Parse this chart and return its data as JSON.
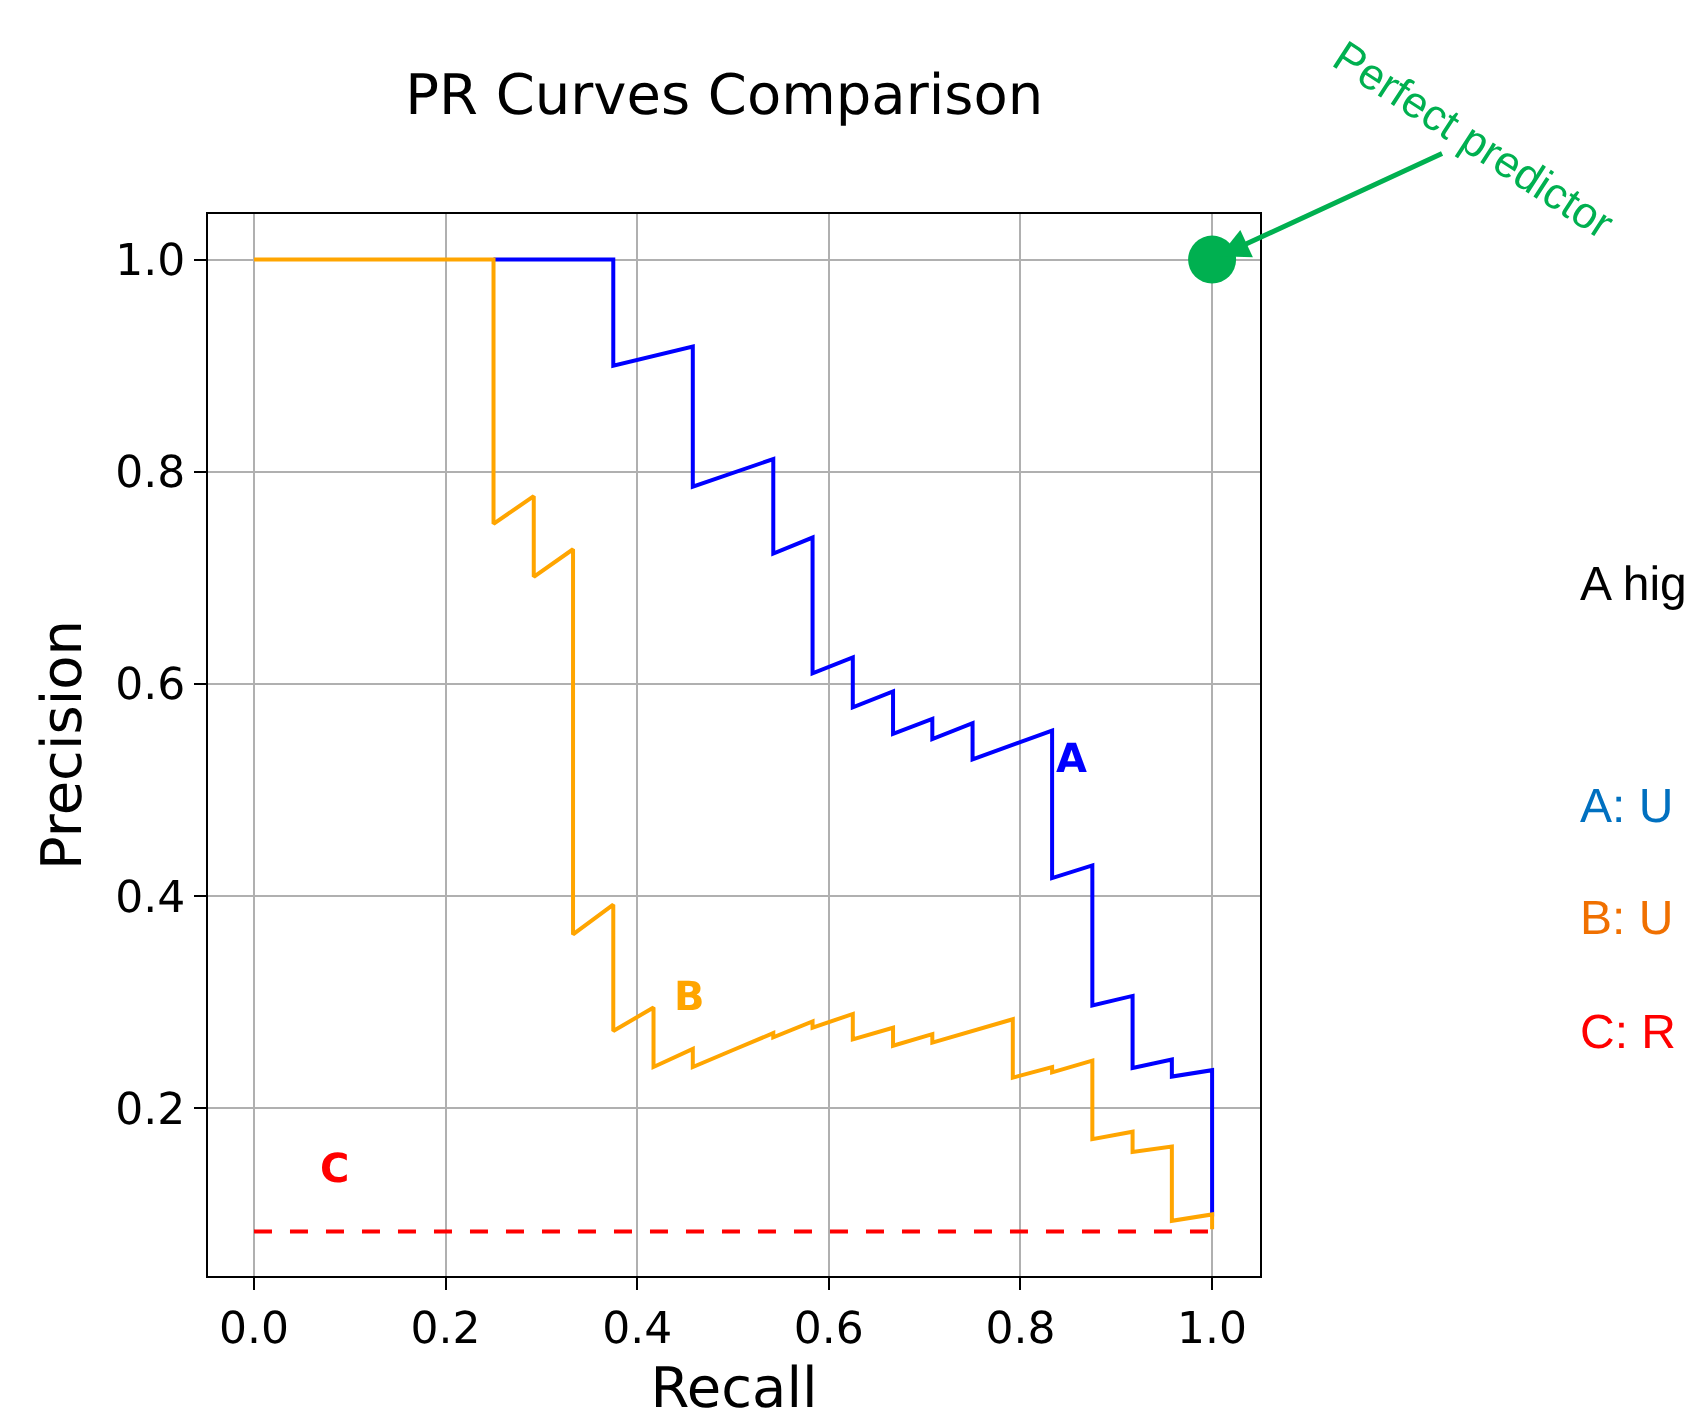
{
  "chart_data": {
    "type": "line",
    "title": "PR Curves Comparison",
    "xlabel": "Recall",
    "ylabel": "Precision",
    "xlim": [
      -0.048,
      1.05
    ],
    "ylim": [
      0.042,
      1.043
    ],
    "xticks": [
      {
        "value": 0,
        "label": "0.0"
      },
      0.2,
      0.4,
      0.6,
      0.8,
      {
        "value": 1,
        "label": "1.0"
      }
    ],
    "yticks": [
      0.2,
      0.4,
      0.6,
      0.8,
      {
        "value": 1,
        "label": "1.0"
      }
    ],
    "grid": true,
    "legend": false,
    "marker": "none",
    "line_style": "solid",
    "series": [
      {
        "name": "A",
        "color": "#0000ff",
        "x": [
          0.25,
          0.375,
          0.375,
          0.458,
          0.458,
          0.542,
          0.542,
          0.583,
          0.583,
          0.625,
          0.625,
          0.667,
          0.667,
          0.708,
          0.708,
          0.75,
          0.75,
          0.833,
          0.833,
          0.875,
          0.875,
          0.917,
          0.917,
          0.958,
          0.958,
          1.0,
          1.0
        ],
        "values": [
          1,
          1,
          0.9,
          0.918,
          0.786,
          0.812,
          0.723,
          0.738,
          0.61,
          0.625,
          0.578,
          0.593,
          0.553,
          0.567,
          0.548,
          0.563,
          0.529,
          0.556,
          0.417,
          0.429,
          0.297,
          0.306,
          0.238,
          0.246,
          0.23,
          0.236,
          0.098
        ]
      },
      {
        "name": "B",
        "color": "#ffa500",
        "x": [
          0,
          0.25,
          0.25,
          0.292,
          0.292,
          0.333,
          0.333,
          0.375,
          0.375,
          0.417,
          0.417,
          0.458,
          0.458,
          0.5,
          0.542,
          0.542,
          0.583,
          0.583,
          0.625,
          0.625,
          0.667,
          0.667,
          0.708,
          0.708,
          0.792,
          0.792,
          0.833,
          0.833,
          0.875,
          0.875,
          0.917,
          0.917,
          0.958,
          0.958,
          1.0,
          1.0
        ],
        "values": [
          1,
          1,
          0.751,
          0.777,
          0.701,
          0.727,
          0.364,
          0.392,
          0.273,
          0.295,
          0.239,
          0.256,
          0.239,
          0.255,
          0.271,
          0.267,
          0.282,
          0.276,
          0.289,
          0.265,
          0.276,
          0.259,
          0.27,
          0.262,
          0.284,
          0.229,
          0.239,
          0.234,
          0.245,
          0.171,
          0.178,
          0.159,
          0.164,
          0.094,
          0.1,
          0.086
        ]
      },
      {
        "name": "C",
        "color": "#ff0000",
        "line_style": "dashed",
        "x": [
          0,
          1.0
        ],
        "values": [
          0.084,
          0.084
        ]
      },
      {
        "type": "scatter",
        "marker": "circle",
        "color": "#00b050",
        "x": [
          1.0
        ],
        "values": [
          1.0
        ]
      }
    ],
    "annotations": [
      {
        "text": "Perfect predictor",
        "x": 1.0,
        "y": 1.0
      },
      "A hig",
      "A: U",
      "B: U",
      "C: R"
    ]
  }
}
